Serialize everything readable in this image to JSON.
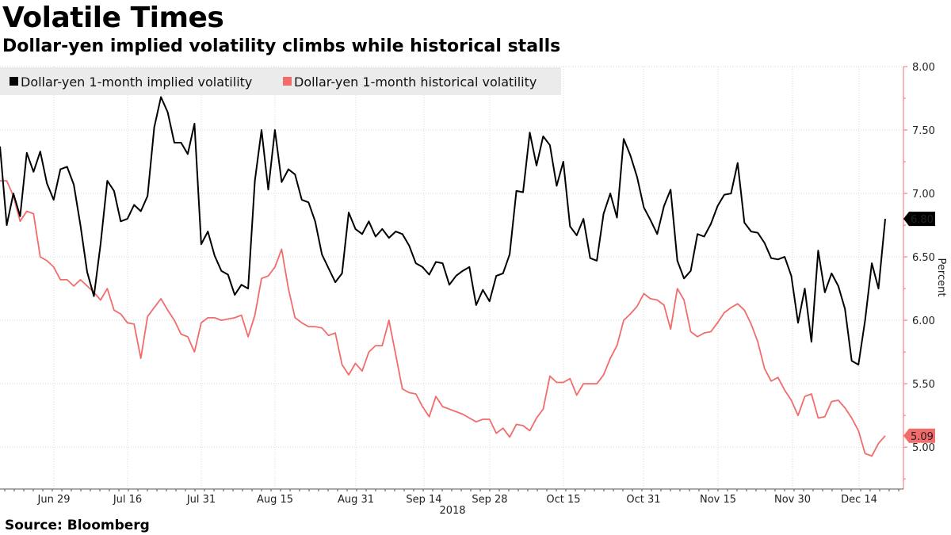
{
  "header": {
    "title": "Volatile Times",
    "subtitle": "Dollar-yen implied volatility climbs while historical stalls"
  },
  "footer": {
    "source": "Source: Bloomberg"
  },
  "colors": {
    "implied": "#000000",
    "historical": "#f26c6c",
    "axis": "#f26c6c",
    "legend_bg": "#ebebeb"
  },
  "chart_data": {
    "type": "line",
    "ylabel": "Percent",
    "ylim": [
      4.67,
      8.0
    ],
    "y_ticks": [
      "8.00",
      "7.50",
      "7.00",
      "6.50",
      "6.00",
      "5.50",
      "5.00"
    ],
    "x_tick_labels": [
      "Jun 29",
      "Jul 16",
      "Jul 31",
      "Aug 15",
      "Aug 31",
      "Sep 14",
      "Sep 28",
      "Oct 15",
      "Oct 31",
      "Nov 15",
      "Nov 30",
      "Dec 14"
    ],
    "x_year_label": "2018",
    "grid": true,
    "legend_position": "top-left",
    "series": [
      {
        "name": "Dollar-yen 1-month implied volatility",
        "color": "#000000",
        "last_label": "6.80",
        "values": [
          7.37,
          6.75,
          7.0,
          6.82,
          7.32,
          7.17,
          7.33,
          7.08,
          6.95,
          7.19,
          7.21,
          7.07,
          6.75,
          6.38,
          6.19,
          6.6,
          7.1,
          7.02,
          6.78,
          6.8,
          6.91,
          6.86,
          6.98,
          7.52,
          7.76,
          7.64,
          7.4,
          7.4,
          7.31,
          7.55,
          6.6,
          6.7,
          6.51,
          6.39,
          6.36,
          6.2,
          6.28,
          6.25,
          7.1,
          7.5,
          7.03,
          7.5,
          7.09,
          7.19,
          7.15,
          6.95,
          6.93,
          6.78,
          6.52,
          6.41,
          6.3,
          6.37,
          6.85,
          6.72,
          6.68,
          6.78,
          6.66,
          6.72,
          6.65,
          6.7,
          6.68,
          6.59,
          6.45,
          6.42,
          6.36,
          6.46,
          6.45,
          6.28,
          6.35,
          6.39,
          6.42,
          6.12,
          6.24,
          6.15,
          6.35,
          6.37,
          6.52,
          7.02,
          7.01,
          7.48,
          7.22,
          7.45,
          7.38,
          7.06,
          7.25,
          6.74,
          6.67,
          6.8,
          6.49,
          6.47,
          6.84,
          7.0,
          6.81,
          7.43,
          7.3,
          7.13,
          6.89,
          6.79,
          6.68,
          6.9,
          7.03,
          6.47,
          6.33,
          6.39,
          6.68,
          6.66,
          6.76,
          6.9,
          6.99,
          7.0,
          7.24,
          6.77,
          6.7,
          6.69,
          6.61,
          6.49,
          6.48,
          6.5,
          6.35,
          5.98,
          6.25,
          5.83,
          6.55,
          6.22,
          6.37,
          6.27,
          6.09,
          5.68,
          5.65,
          6.0,
          6.45,
          6.25,
          6.8
        ]
      },
      {
        "name": "Dollar-yen 1-month historical volatility",
        "color": "#f26c6c",
        "last_label": "5.09",
        "values": [
          7.1,
          7.1,
          6.98,
          6.78,
          6.86,
          6.84,
          6.5,
          6.47,
          6.42,
          6.32,
          6.32,
          6.27,
          6.32,
          6.27,
          6.22,
          6.16,
          6.25,
          6.08,
          6.05,
          5.98,
          5.97,
          5.7,
          6.03,
          6.1,
          6.17,
          6.08,
          6.0,
          5.89,
          5.87,
          5.75,
          5.98,
          6.02,
          6.02,
          6.0,
          6.01,
          6.02,
          6.04,
          5.87,
          6.04,
          6.33,
          6.35,
          6.42,
          6.56,
          6.25,
          6.02,
          5.98,
          5.95,
          5.95,
          5.94,
          5.88,
          5.9,
          5.65,
          5.57,
          5.66,
          5.6,
          5.75,
          5.8,
          5.8,
          6.0,
          5.73,
          5.46,
          5.43,
          5.42,
          5.32,
          5.24,
          5.4,
          5.32,
          5.3,
          5.28,
          5.26,
          5.23,
          5.2,
          5.22,
          5.22,
          5.11,
          5.15,
          5.08,
          5.18,
          5.17,
          5.13,
          5.23,
          5.3,
          5.56,
          5.51,
          5.51,
          5.54,
          5.41,
          5.5,
          5.5,
          5.5,
          5.57,
          5.7,
          5.8,
          6.0,
          6.05,
          6.11,
          6.21,
          6.17,
          6.16,
          6.12,
          5.93,
          6.25,
          6.16,
          5.91,
          5.87,
          5.9,
          5.91,
          5.98,
          6.06,
          6.1,
          6.13,
          6.08,
          5.97,
          5.83,
          5.62,
          5.52,
          5.55,
          5.45,
          5.37,
          5.25,
          5.4,
          5.42,
          5.23,
          5.24,
          5.36,
          5.37,
          5.31,
          5.23,
          5.13,
          4.95,
          4.93,
          5.03,
          5.09
        ]
      }
    ]
  }
}
